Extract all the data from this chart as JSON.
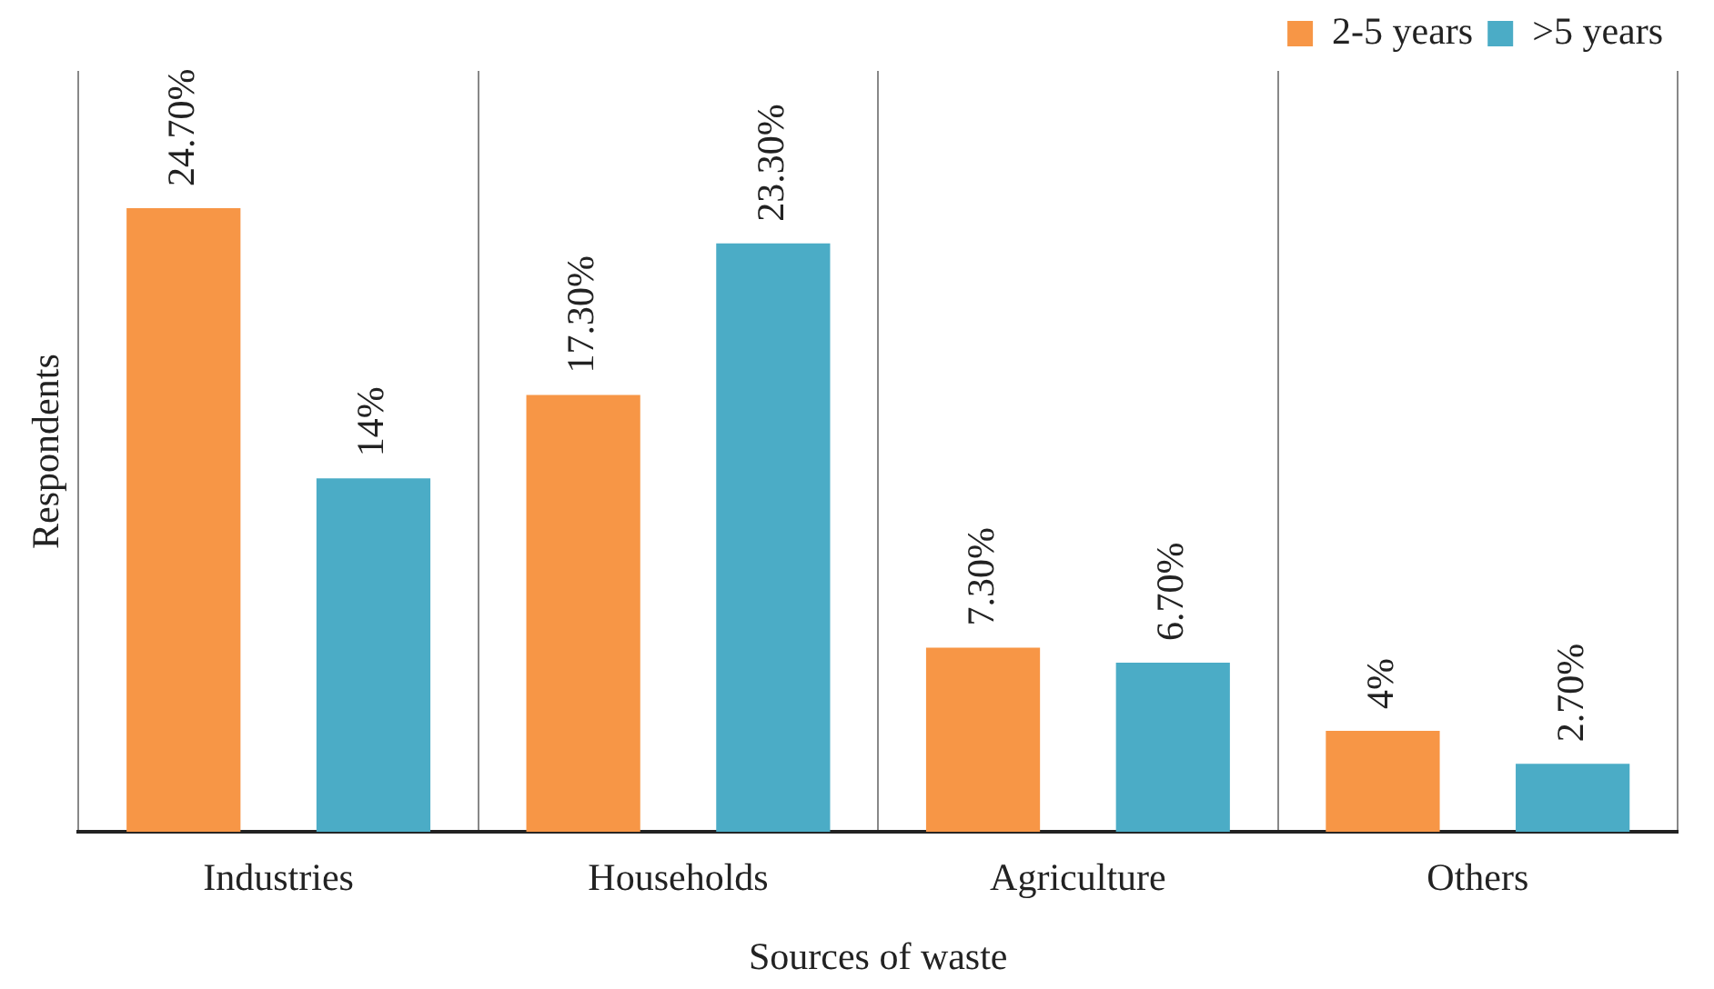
{
  "chart_data": {
    "type": "bar",
    "xlabel": "Sources of waste",
    "ylabel": "Respondents",
    "categories": [
      "Industries",
      "Households",
      "Agriculture",
      "Others"
    ],
    "series": [
      {
        "name": "2-5 years",
        "color": "#f79646",
        "values": [
          24.7,
          17.3,
          7.3,
          4
        ],
        "value_labels": [
          "24.70%",
          "17.30%",
          "7.30%",
          "4%"
        ]
      },
      {
        "name": ">5 years",
        "color": "#4bacc6",
        "values": [
          14,
          23.3,
          6.7,
          2.7
        ],
        "value_labels": [
          "14%",
          "23.30%",
          "6.70%",
          "2.70%"
        ]
      }
    ],
    "grid": "x",
    "legend": "top right"
  }
}
